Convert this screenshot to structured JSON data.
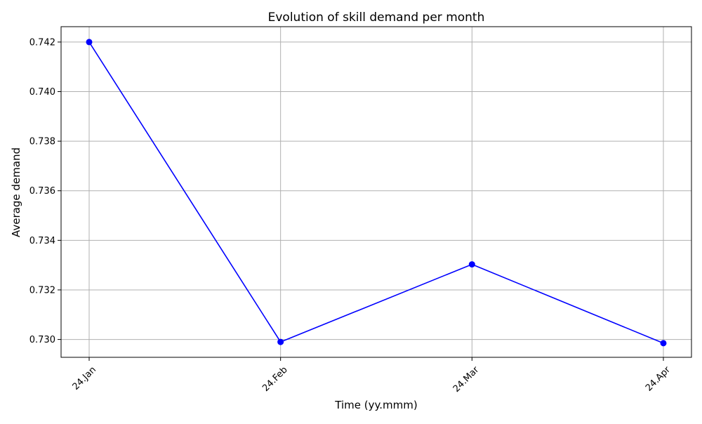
{
  "chart_data": {
    "type": "line",
    "title": "Evolution of skill demand per month",
    "xlabel": "Time (yy.mmm)",
    "ylabel": "Average demand",
    "categories": [
      "24.Jan",
      "24.Feb",
      "24.Mar",
      "24.Apr"
    ],
    "series": [
      {
        "values": [
          0.742,
          0.7299,
          0.73303,
          0.72985
        ],
        "color": "#0000ff",
        "marker": "circle"
      }
    ],
    "yticks": [
      "0.730",
      "0.732",
      "0.734",
      "0.736",
      "0.738",
      "0.740",
      "0.742"
    ],
    "ylim": [
      0.72928,
      0.74262
    ],
    "grid": true,
    "legend": "none",
    "colors": {
      "grid": "#b0b0b0",
      "axes": "#000000",
      "line": "#0000ff"
    }
  }
}
